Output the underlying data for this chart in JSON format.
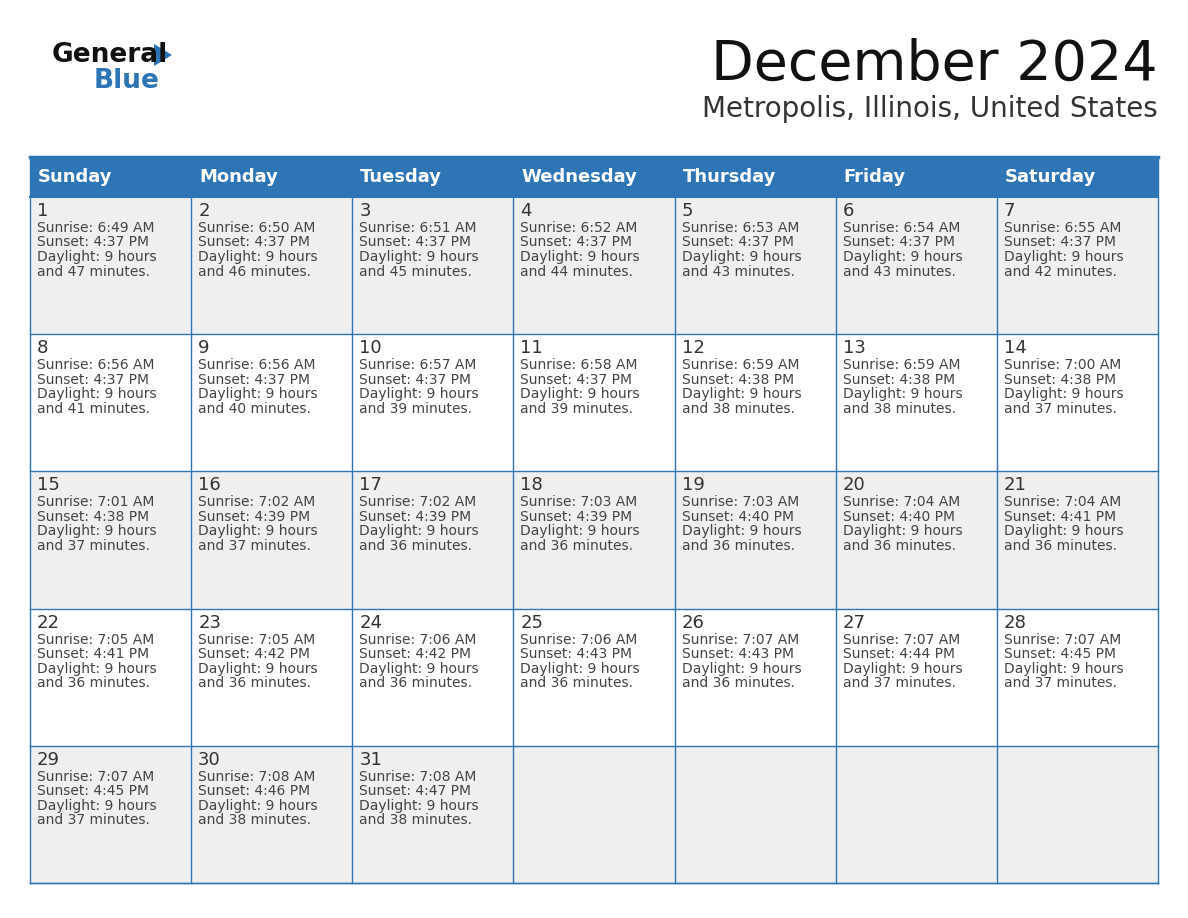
{
  "title": "December 2024",
  "subtitle": "Metropolis, Illinois, United States",
  "header_color": "#2E75B6",
  "header_text_color": "#FFFFFF",
  "cell_bg_odd": "#EFEFEF",
  "cell_bg_even": "#FFFFFF",
  "day_number_color": "#333333",
  "cell_text_color": "#444444",
  "border_color": "#2E75B6",
  "days_of_week": [
    "Sunday",
    "Monday",
    "Tuesday",
    "Wednesday",
    "Thursday",
    "Friday",
    "Saturday"
  ],
  "weeks": [
    [
      {
        "day": 1,
        "sunrise": "6:49 AM",
        "sunset": "4:37 PM",
        "daylight_h": "9 hours",
        "daylight_m": "and 47 minutes."
      },
      {
        "day": 2,
        "sunrise": "6:50 AM",
        "sunset": "4:37 PM",
        "daylight_h": "9 hours",
        "daylight_m": "and 46 minutes."
      },
      {
        "day": 3,
        "sunrise": "6:51 AM",
        "sunset": "4:37 PM",
        "daylight_h": "9 hours",
        "daylight_m": "and 45 minutes."
      },
      {
        "day": 4,
        "sunrise": "6:52 AM",
        "sunset": "4:37 PM",
        "daylight_h": "9 hours",
        "daylight_m": "and 44 minutes."
      },
      {
        "day": 5,
        "sunrise": "6:53 AM",
        "sunset": "4:37 PM",
        "daylight_h": "9 hours",
        "daylight_m": "and 43 minutes."
      },
      {
        "day": 6,
        "sunrise": "6:54 AM",
        "sunset": "4:37 PM",
        "daylight_h": "9 hours",
        "daylight_m": "and 43 minutes."
      },
      {
        "day": 7,
        "sunrise": "6:55 AM",
        "sunset": "4:37 PM",
        "daylight_h": "9 hours",
        "daylight_m": "and 42 minutes."
      }
    ],
    [
      {
        "day": 8,
        "sunrise": "6:56 AM",
        "sunset": "4:37 PM",
        "daylight_h": "9 hours",
        "daylight_m": "and 41 minutes."
      },
      {
        "day": 9,
        "sunrise": "6:56 AM",
        "sunset": "4:37 PM",
        "daylight_h": "9 hours",
        "daylight_m": "and 40 minutes."
      },
      {
        "day": 10,
        "sunrise": "6:57 AM",
        "sunset": "4:37 PM",
        "daylight_h": "9 hours",
        "daylight_m": "and 39 minutes."
      },
      {
        "day": 11,
        "sunrise": "6:58 AM",
        "sunset": "4:37 PM",
        "daylight_h": "9 hours",
        "daylight_m": "and 39 minutes."
      },
      {
        "day": 12,
        "sunrise": "6:59 AM",
        "sunset": "4:38 PM",
        "daylight_h": "9 hours",
        "daylight_m": "and 38 minutes."
      },
      {
        "day": 13,
        "sunrise": "6:59 AM",
        "sunset": "4:38 PM",
        "daylight_h": "9 hours",
        "daylight_m": "and 38 minutes."
      },
      {
        "day": 14,
        "sunrise": "7:00 AM",
        "sunset": "4:38 PM",
        "daylight_h": "9 hours",
        "daylight_m": "and 37 minutes."
      }
    ],
    [
      {
        "day": 15,
        "sunrise": "7:01 AM",
        "sunset": "4:38 PM",
        "daylight_h": "9 hours",
        "daylight_m": "and 37 minutes."
      },
      {
        "day": 16,
        "sunrise": "7:02 AM",
        "sunset": "4:39 PM",
        "daylight_h": "9 hours",
        "daylight_m": "and 37 minutes."
      },
      {
        "day": 17,
        "sunrise": "7:02 AM",
        "sunset": "4:39 PM",
        "daylight_h": "9 hours",
        "daylight_m": "and 36 minutes."
      },
      {
        "day": 18,
        "sunrise": "7:03 AM",
        "sunset": "4:39 PM",
        "daylight_h": "9 hours",
        "daylight_m": "and 36 minutes."
      },
      {
        "day": 19,
        "sunrise": "7:03 AM",
        "sunset": "4:40 PM",
        "daylight_h": "9 hours",
        "daylight_m": "and 36 minutes."
      },
      {
        "day": 20,
        "sunrise": "7:04 AM",
        "sunset": "4:40 PM",
        "daylight_h": "9 hours",
        "daylight_m": "and 36 minutes."
      },
      {
        "day": 21,
        "sunrise": "7:04 AM",
        "sunset": "4:41 PM",
        "daylight_h": "9 hours",
        "daylight_m": "and 36 minutes."
      }
    ],
    [
      {
        "day": 22,
        "sunrise": "7:05 AM",
        "sunset": "4:41 PM",
        "daylight_h": "9 hours",
        "daylight_m": "and 36 minutes."
      },
      {
        "day": 23,
        "sunrise": "7:05 AM",
        "sunset": "4:42 PM",
        "daylight_h": "9 hours",
        "daylight_m": "and 36 minutes."
      },
      {
        "day": 24,
        "sunrise": "7:06 AM",
        "sunset": "4:42 PM",
        "daylight_h": "9 hours",
        "daylight_m": "and 36 minutes."
      },
      {
        "day": 25,
        "sunrise": "7:06 AM",
        "sunset": "4:43 PM",
        "daylight_h": "9 hours",
        "daylight_m": "and 36 minutes."
      },
      {
        "day": 26,
        "sunrise": "7:07 AM",
        "sunset": "4:43 PM",
        "daylight_h": "9 hours",
        "daylight_m": "and 36 minutes."
      },
      {
        "day": 27,
        "sunrise": "7:07 AM",
        "sunset": "4:44 PM",
        "daylight_h": "9 hours",
        "daylight_m": "and 37 minutes."
      },
      {
        "day": 28,
        "sunrise": "7:07 AM",
        "sunset": "4:45 PM",
        "daylight_h": "9 hours",
        "daylight_m": "and 37 minutes."
      }
    ],
    [
      {
        "day": 29,
        "sunrise": "7:07 AM",
        "sunset": "4:45 PM",
        "daylight_h": "9 hours",
        "daylight_m": "and 37 minutes."
      },
      {
        "day": 30,
        "sunrise": "7:08 AM",
        "sunset": "4:46 PM",
        "daylight_h": "9 hours",
        "daylight_m": "and 38 minutes."
      },
      {
        "day": 31,
        "sunrise": "7:08 AM",
        "sunset": "4:47 PM",
        "daylight_h": "9 hours",
        "daylight_m": "and 38 minutes."
      },
      null,
      null,
      null,
      null
    ]
  ],
  "logo_text1": "General",
  "logo_text2": "Blue",
  "logo_triangle_color": "#2E75B6",
  "title_fontsize": 40,
  "subtitle_fontsize": 20,
  "header_fontsize": 13,
  "day_num_fontsize": 13,
  "cell_fontsize": 10
}
